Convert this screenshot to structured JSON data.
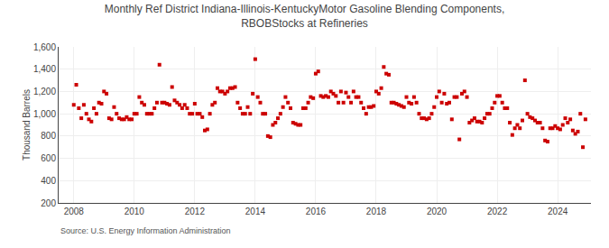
{
  "chart_data": {
    "type": "scatter",
    "title": "Monthly Ref District Indiana-Illinois-KentuckyMotor Gasoline Blending Components,\nRBOBStocks at Refineries",
    "ylabel": "Thousand Barrels",
    "annotations": [
      "Source: U.S. Energy Information Administration"
    ],
    "color": "#cc0000",
    "marker": "square",
    "grid": true,
    "ylim": [
      200,
      1600
    ],
    "yticks": [
      200,
      400,
      600,
      800,
      {
        "value": 1000,
        "label": "1,000"
      },
      {
        "value": 1200,
        "label": "1,200"
      },
      {
        "value": 1400,
        "label": "1,400"
      },
      {
        "value": 1600,
        "label": "1,600"
      }
    ],
    "xlim": [
      2007.5,
      2025.1
    ],
    "xticks": [
      2008,
      2010,
      2012,
      2014,
      2016,
      2018,
      2020,
      2022,
      2024
    ],
    "x": [
      2008.0,
      2008.083,
      2008.167,
      2008.25,
      2008.333,
      2008.417,
      2008.5,
      2008.583,
      2008.667,
      2008.75,
      2008.833,
      2008.917,
      2009.0,
      2009.083,
      2009.167,
      2009.25,
      2009.333,
      2009.417,
      2009.5,
      2009.583,
      2009.667,
      2009.75,
      2009.833,
      2009.917,
      2010.0,
      2010.083,
      2010.167,
      2010.25,
      2010.333,
      2010.417,
      2010.5,
      2010.583,
      2010.667,
      2010.75,
      2010.833,
      2010.917,
      2011.0,
      2011.083,
      2011.167,
      2011.25,
      2011.333,
      2011.417,
      2011.5,
      2011.583,
      2011.667,
      2011.75,
      2011.833,
      2011.917,
      2012.0,
      2012.083,
      2012.167,
      2012.25,
      2012.333,
      2012.417,
      2012.5,
      2012.583,
      2012.667,
      2012.75,
      2012.833,
      2012.917,
      2013.0,
      2013.083,
      2013.167,
      2013.25,
      2013.333,
      2013.417,
      2013.5,
      2013.583,
      2013.667,
      2013.75,
      2013.833,
      2013.917,
      2014.0,
      2014.083,
      2014.167,
      2014.25,
      2014.333,
      2014.417,
      2014.5,
      2014.583,
      2014.667,
      2014.75,
      2014.833,
      2014.917,
      2015.0,
      2015.083,
      2015.167,
      2015.25,
      2015.333,
      2015.417,
      2015.5,
      2015.583,
      2015.667,
      2015.75,
      2015.833,
      2015.917,
      2016.0,
      2016.083,
      2016.167,
      2016.25,
      2016.333,
      2016.417,
      2016.5,
      2016.583,
      2016.667,
      2016.75,
      2016.833,
      2016.917,
      2017.0,
      2017.083,
      2017.167,
      2017.25,
      2017.333,
      2017.417,
      2017.5,
      2017.583,
      2017.667,
      2017.75,
      2017.833,
      2017.917,
      2018.0,
      2018.083,
      2018.167,
      2018.25,
      2018.333,
      2018.417,
      2018.5,
      2018.583,
      2018.667,
      2018.75,
      2018.833,
      2018.917,
      2019.0,
      2019.083,
      2019.167,
      2019.25,
      2019.333,
      2019.417,
      2019.5,
      2019.583,
      2019.667,
      2019.75,
      2019.833,
      2019.917,
      2020.0,
      2020.083,
      2020.167,
      2020.25,
      2020.333,
      2020.417,
      2020.5,
      2020.583,
      2020.667,
      2020.75,
      2020.833,
      2020.917,
      2021.0,
      2021.083,
      2021.167,
      2021.25,
      2021.333,
      2021.417,
      2021.5,
      2021.583,
      2021.667,
      2021.75,
      2021.833,
      2021.917,
      2022.0,
      2022.083,
      2022.167,
      2022.25,
      2022.333,
      2022.417,
      2022.5,
      2022.583,
      2022.667,
      2022.75,
      2022.833,
      2022.917,
      2023.0,
      2023.083,
      2023.167,
      2023.25,
      2023.333,
      2023.417,
      2023.5,
      2023.583,
      2023.667,
      2023.75,
      2023.833,
      2023.917,
      2024.0,
      2024.083,
      2024.167,
      2024.25,
      2024.333,
      2024.417,
      2024.5,
      2024.583,
      2024.667,
      2024.75,
      2024.833,
      2024.917
    ],
    "values": [
      1080,
      1260,
      1050,
      960,
      1080,
      1000,
      950,
      930,
      1050,
      1000,
      1100,
      1090,
      1200,
      1180,
      960,
      950,
      1060,
      1000,
      960,
      950,
      950,
      970,
      950,
      950,
      1000,
      1000,
      1150,
      1100,
      1080,
      1000,
      1000,
      1000,
      1050,
      1100,
      1440,
      1100,
      1100,
      1090,
      1080,
      1240,
      1120,
      1100,
      1080,
      1050,
      1080,
      1050,
      1000,
      1000,
      1090,
      1000,
      1000,
      970,
      850,
      860,
      1000,
      1080,
      1100,
      1230,
      1200,
      1200,
      1180,
      1200,
      1230,
      1230,
      1240,
      1100,
      1050,
      1000,
      1000,
      1060,
      1000,
      1180,
      1490,
      1150,
      1100,
      1000,
      1000,
      800,
      790,
      900,
      920,
      960,
      1000,
      1060,
      1150,
      1100,
      1050,
      920,
      910,
      900,
      900,
      1050,
      1050,
      1100,
      1150,
      1140,
      1360,
      1380,
      1160,
      1150,
      1160,
      1150,
      1200,
      1180,
      1160,
      1100,
      1200,
      1100,
      1190,
      1150,
      1100,
      1200,
      1150,
      1150,
      1100,
      1050,
      1000,
      1060,
      1060,
      1070,
      1200,
      1180,
      1230,
      1420,
      1360,
      1350,
      1100,
      1100,
      1090,
      1080,
      1070,
      1060,
      1150,
      1100,
      1090,
      1150,
      1100,
      1000,
      960,
      960,
      950,
      960,
      1000,
      1060,
      1150,
      1200,
      1100,
      1180,
      1090,
      1100,
      950,
      1150,
      1150,
      770,
      1180,
      1200,
      1150,
      920,
      940,
      960,
      930,
      930,
      920,
      960,
      1000,
      1000,
      1050,
      1100,
      1160,
      1160,
      1100,
      1050,
      1050,
      920,
      810,
      870,
      900,
      870,
      940,
      1300,
      1000,
      970,
      960,
      940,
      920,
      920,
      870,
      760,
      750,
      870,
      870,
      890,
      870,
      860,
      900,
      960,
      920,
      950,
      850,
      820,
      840,
      1000,
      700,
      950
    ]
  }
}
